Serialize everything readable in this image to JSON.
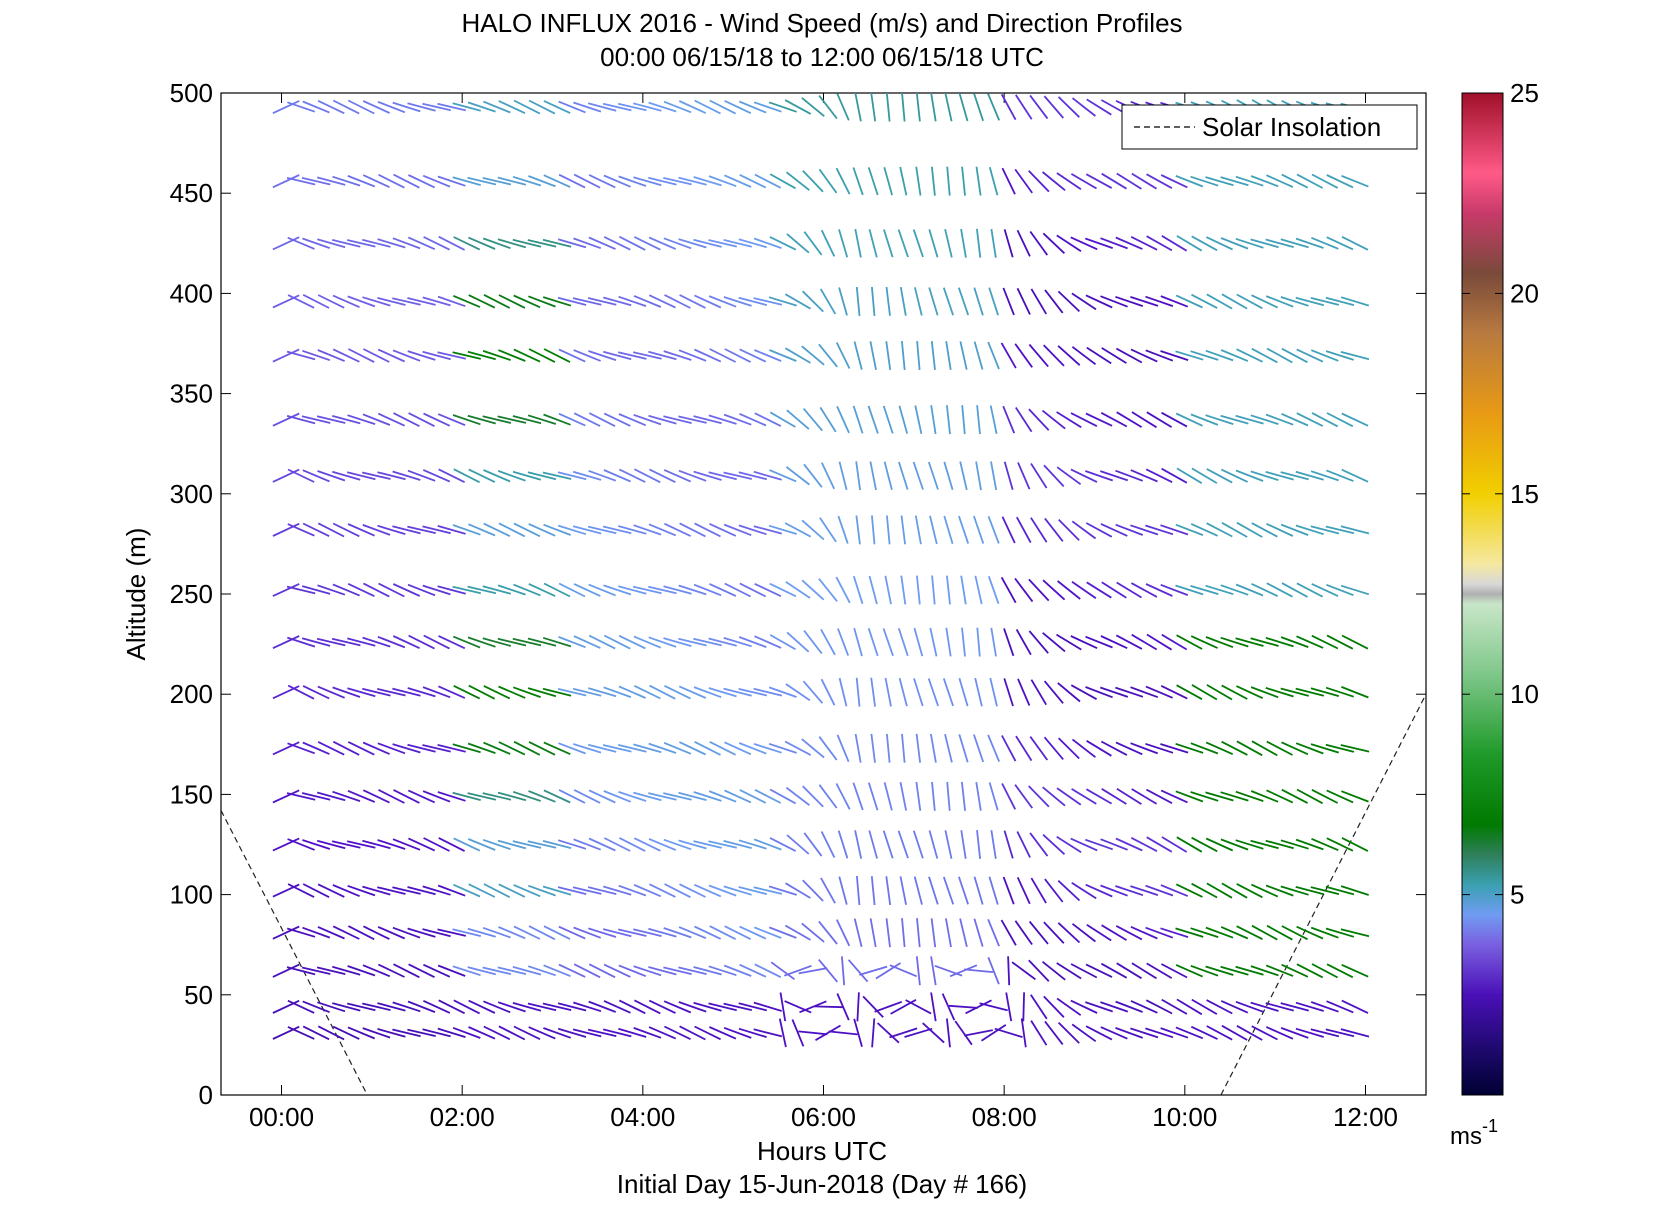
{
  "chart_data": {
    "type": "wind_barb_profile",
    "title": "HALO INFLUX 2016 - Wind Speed (m/s) and Direction Profiles",
    "subtitle": "00:00 06/15/18 to 12:00 06/15/18  UTC",
    "xlabel": "Hours UTC",
    "footer": "Initial Day 15-Jun-2018 (Day # 166)",
    "ylabel": "Altitude (m)",
    "x_range_hours": [
      -0.67,
      12.67
    ],
    "xlim": [
      -0.67,
      12.67
    ],
    "x_ticks": [
      {
        "value": 0,
        "label": "00:00"
      },
      {
        "value": 2,
        "label": "02:00"
      },
      {
        "value": 4,
        "label": "04:00"
      },
      {
        "value": 6,
        "label": "06:00"
      },
      {
        "value": 8,
        "label": "08:00"
      },
      {
        "value": 10,
        "label": "10:00"
      },
      {
        "value": 12,
        "label": "12:00"
      }
    ],
    "y_ticks": [
      {
        "value": 0,
        "label": "0"
      },
      {
        "value": 50,
        "label": "50"
      },
      {
        "value": 100,
        "label": "100"
      },
      {
        "value": 150,
        "label": "150"
      },
      {
        "value": 200,
        "label": "200"
      },
      {
        "value": 250,
        "label": "250"
      },
      {
        "value": 300,
        "label": "300"
      },
      {
        "value": 350,
        "label": "350"
      },
      {
        "value": 400,
        "label": "400"
      },
      {
        "value": 450,
        "label": "450"
      },
      {
        "value": 500,
        "label": "500"
      }
    ],
    "ylim": [
      0,
      500
    ],
    "legend": {
      "label": "Solar Insolation",
      "position": "top-right",
      "style": "dashed"
    },
    "colorbar": {
      "min": 0,
      "max": 25,
      "unit": "ms",
      "unit_exp": "-1",
      "ticks": [
        {
          "value": 5,
          "label": "5"
        },
        {
          "value": 10,
          "label": "10"
        },
        {
          "value": 15,
          "label": "15"
        },
        {
          "value": 20,
          "label": "20"
        },
        {
          "value": 25,
          "label": "25"
        }
      ]
    },
    "solar_insolation": [
      [
        [
          -0.67,
          142
        ],
        [
          0.95,
          0
        ]
      ],
      [
        [
          10.4,
          0
        ],
        [
          12.67,
          200
        ]
      ]
    ],
    "altitudes_m": [
      31,
      44,
      62,
      81,
      102,
      125,
      149,
      173,
      201,
      226,
      252,
      282,
      309,
      337,
      369,
      396,
      425,
      456,
      493
    ],
    "wind_description": "Wind vectors at ~10-minute intervals, 00:00-12:00 UTC. Direction mostly from the west-northwest (vectors sloping down to the right); near-vertical (northerly) around 06:00-08:00; speeds mostly 2-8 m/s."
  }
}
